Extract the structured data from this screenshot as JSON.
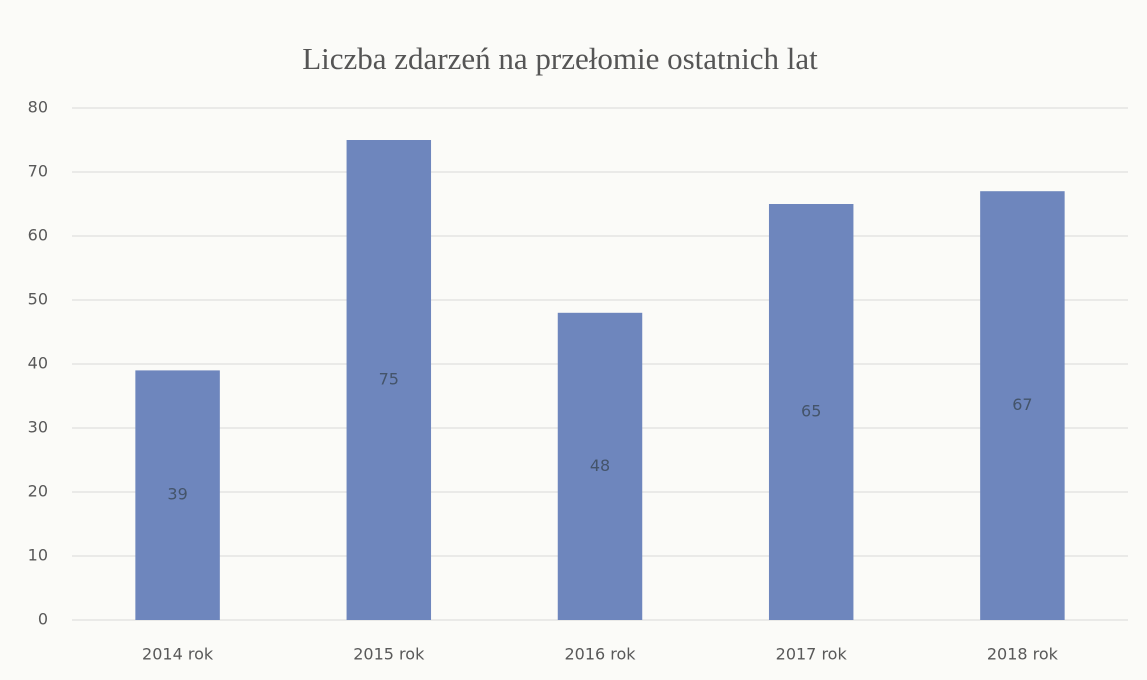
{
  "chart_data": {
    "type": "bar",
    "title": "Liczba zdarzeń na przełomie ostatnich lat",
    "categories": [
      "2014 rok",
      "2015 rok",
      "2016 rok",
      "2017 rok",
      "2018 rok"
    ],
    "values": [
      39,
      75,
      48,
      65,
      67
    ],
    "color": "#6e86bd",
    "ylim": [
      0,
      80
    ],
    "yticks": [
      0,
      10,
      20,
      30,
      40,
      50,
      60,
      70,
      80
    ],
    "grid": true
  }
}
